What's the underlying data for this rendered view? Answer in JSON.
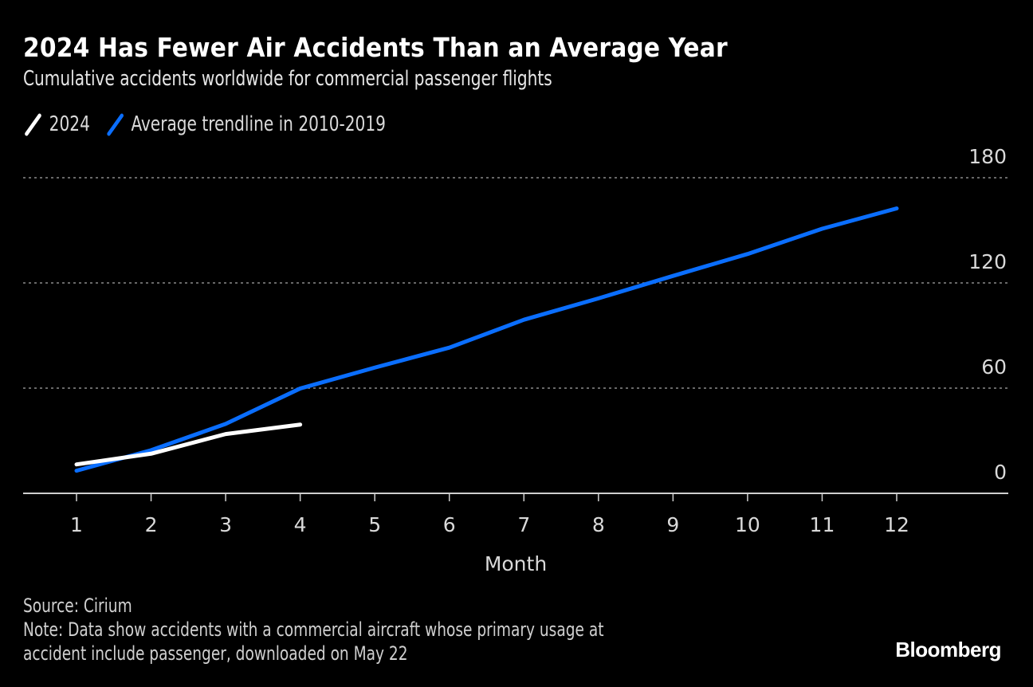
{
  "header": {
    "title": "2024 Has Fewer Air Accidents Than an Average Year",
    "subtitle": "Cumulative accidents worldwide for commercial passenger flights"
  },
  "legend": [
    {
      "label": "2024",
      "color": "#ffffff"
    },
    {
      "label": "Average trendline in 2010-2019",
      "color": "#0a6eff"
    }
  ],
  "footer": {
    "source": "Source: Cirium",
    "note_line1": "Note: Data show accidents with a commercial aircraft whose primary usage at",
    "note_line2": "accident include passenger, downloaded on May 22",
    "logo": "Bloomberg"
  },
  "chart_data": {
    "type": "line",
    "title": "2024 Has Fewer Air Accidents Than an Average Year",
    "subtitle": "Cumulative accidents worldwide for commercial passenger flights",
    "xlabel": "Month",
    "ylabel": "",
    "x": [
      1,
      2,
      3,
      4,
      5,
      6,
      7,
      8,
      9,
      10,
      11,
      12
    ],
    "xticks": [
      "1",
      "2",
      "3",
      "4",
      "5",
      "6",
      "7",
      "8",
      "9",
      "10",
      "11",
      "12"
    ],
    "yticks": [
      "0",
      "60",
      "120",
      "180"
    ],
    "ytick_values": [
      0,
      60,
      120,
      180
    ],
    "ylim": [
      0,
      180
    ],
    "xlim": [
      0.3,
      13.5
    ],
    "grid": "horizontal-dotted",
    "yaxis_side": "right",
    "legend_position": "top-left",
    "series": [
      {
        "name": "2024",
        "color": "#ffffff",
        "x": [
          1,
          2,
          3,
          4
        ],
        "values": [
          16.5,
          22.6,
          33.8,
          39.2
        ]
      },
      {
        "name": "Average trendline in 2010-2019",
        "color": "#0a6eff",
        "x": [
          1,
          2,
          3,
          4,
          5,
          6,
          7,
          8,
          9,
          10,
          11,
          12
        ],
        "values": [
          12.9,
          24.6,
          39.6,
          59.8,
          71.7,
          83.1,
          99.0,
          111.2,
          124.0,
          136.5,
          150.9,
          162.5
        ]
      }
    ]
  }
}
